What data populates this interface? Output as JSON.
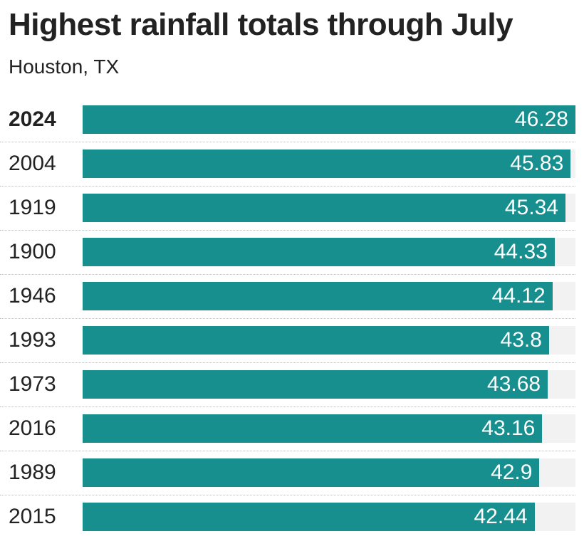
{
  "title": "Highest rainfall totals through July",
  "subtitle": "Houston, TX",
  "colors": {
    "bar": "#178f8f",
    "track": "#f2f2f2"
  },
  "chart_data": {
    "type": "bar",
    "orientation": "horizontal",
    "title": "Highest rainfall totals through July",
    "subtitle": "Houston, TX",
    "categories": [
      "2024",
      "2004",
      "1919",
      "1900",
      "1946",
      "1993",
      "1973",
      "2016",
      "1989",
      "2015"
    ],
    "values": [
      46.28,
      45.83,
      45.34,
      44.33,
      44.12,
      43.8,
      43.68,
      43.16,
      42.9,
      42.44
    ],
    "value_labels": [
      "46.28",
      "45.83",
      "45.34",
      "44.33",
      "44.12",
      "43.8",
      "43.68",
      "43.16",
      "42.9",
      "42.44"
    ],
    "highlight": "2024",
    "xlim": [
      0,
      46.28
    ],
    "xlabel": "",
    "ylabel": "",
    "grid": false,
    "legend": "none"
  }
}
